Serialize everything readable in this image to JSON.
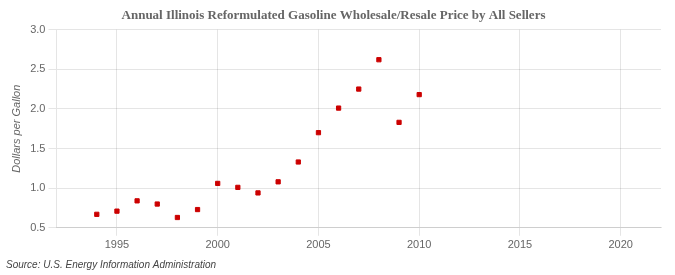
{
  "chart_data": {
    "type": "scatter",
    "title": "Annual Illinois Reformulated Gasoline Wholesale/Resale Price by All Sellers",
    "ylabel": "Dollars per Gallon",
    "source": "Source: U.S. Energy Information Administration",
    "x": [
      1994,
      1995,
      1996,
      1997,
      1998,
      1999,
      2000,
      2001,
      2002,
      2003,
      2004,
      2005,
      2006,
      2007,
      2008,
      2009,
      2010
    ],
    "values": [
      0.67,
      0.71,
      0.84,
      0.8,
      0.63,
      0.73,
      1.06,
      1.01,
      0.94,
      1.08,
      1.33,
      1.7,
      2.01,
      2.25,
      2.62,
      1.83,
      2.18
    ],
    "color": "#cc0000",
    "marker": "square",
    "xlim": [
      1992,
      2022
    ],
    "ylim": [
      0.5,
      3.0
    ],
    "xticks": [
      1995,
      2000,
      2005,
      2010,
      2015,
      2020
    ],
    "yticks": [
      0.5,
      {
        "value": 1.0,
        "label": "1.0"
      },
      1.5,
      {
        "value": 2.0,
        "label": "2.0"
      },
      2.5,
      {
        "value": 3.0,
        "label": "3.0"
      }
    ],
    "grid": true
  }
}
